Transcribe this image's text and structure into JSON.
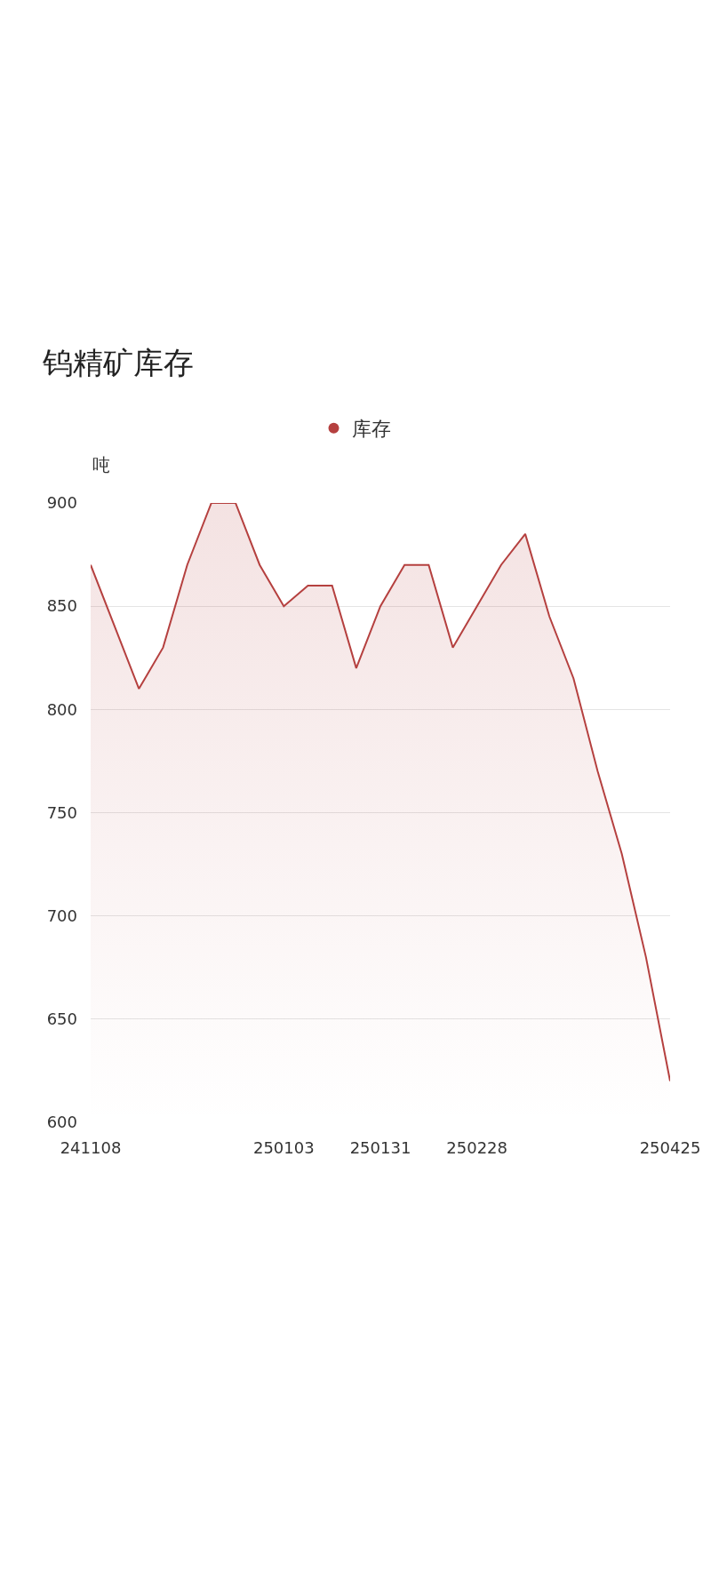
{
  "chart_data": {
    "type": "area",
    "title": "钨精矿库存",
    "ylabel": "吨",
    "categories": [
      "241108",
      null,
      null,
      null,
      null,
      null,
      null,
      null,
      "250103",
      null,
      null,
      null,
      "250131",
      null,
      null,
      null,
      "250228",
      null,
      null,
      null,
      null,
      null,
      null,
      null,
      "250425"
    ],
    "series": [
      {
        "name": "库存",
        "color": "#b5403f",
        "values": [
          870,
          840,
          810,
          830,
          870,
          900,
          900,
          870,
          850,
          860,
          860,
          820,
          850,
          870,
          870,
          830,
          850,
          870,
          885,
          845,
          815,
          770,
          730,
          680,
          620
        ]
      }
    ],
    "ylim": [
      600,
      900
    ],
    "yticks": [
      600,
      650,
      700,
      750,
      800,
      850,
      900
    ],
    "grid": "y",
    "legend": "top"
  }
}
